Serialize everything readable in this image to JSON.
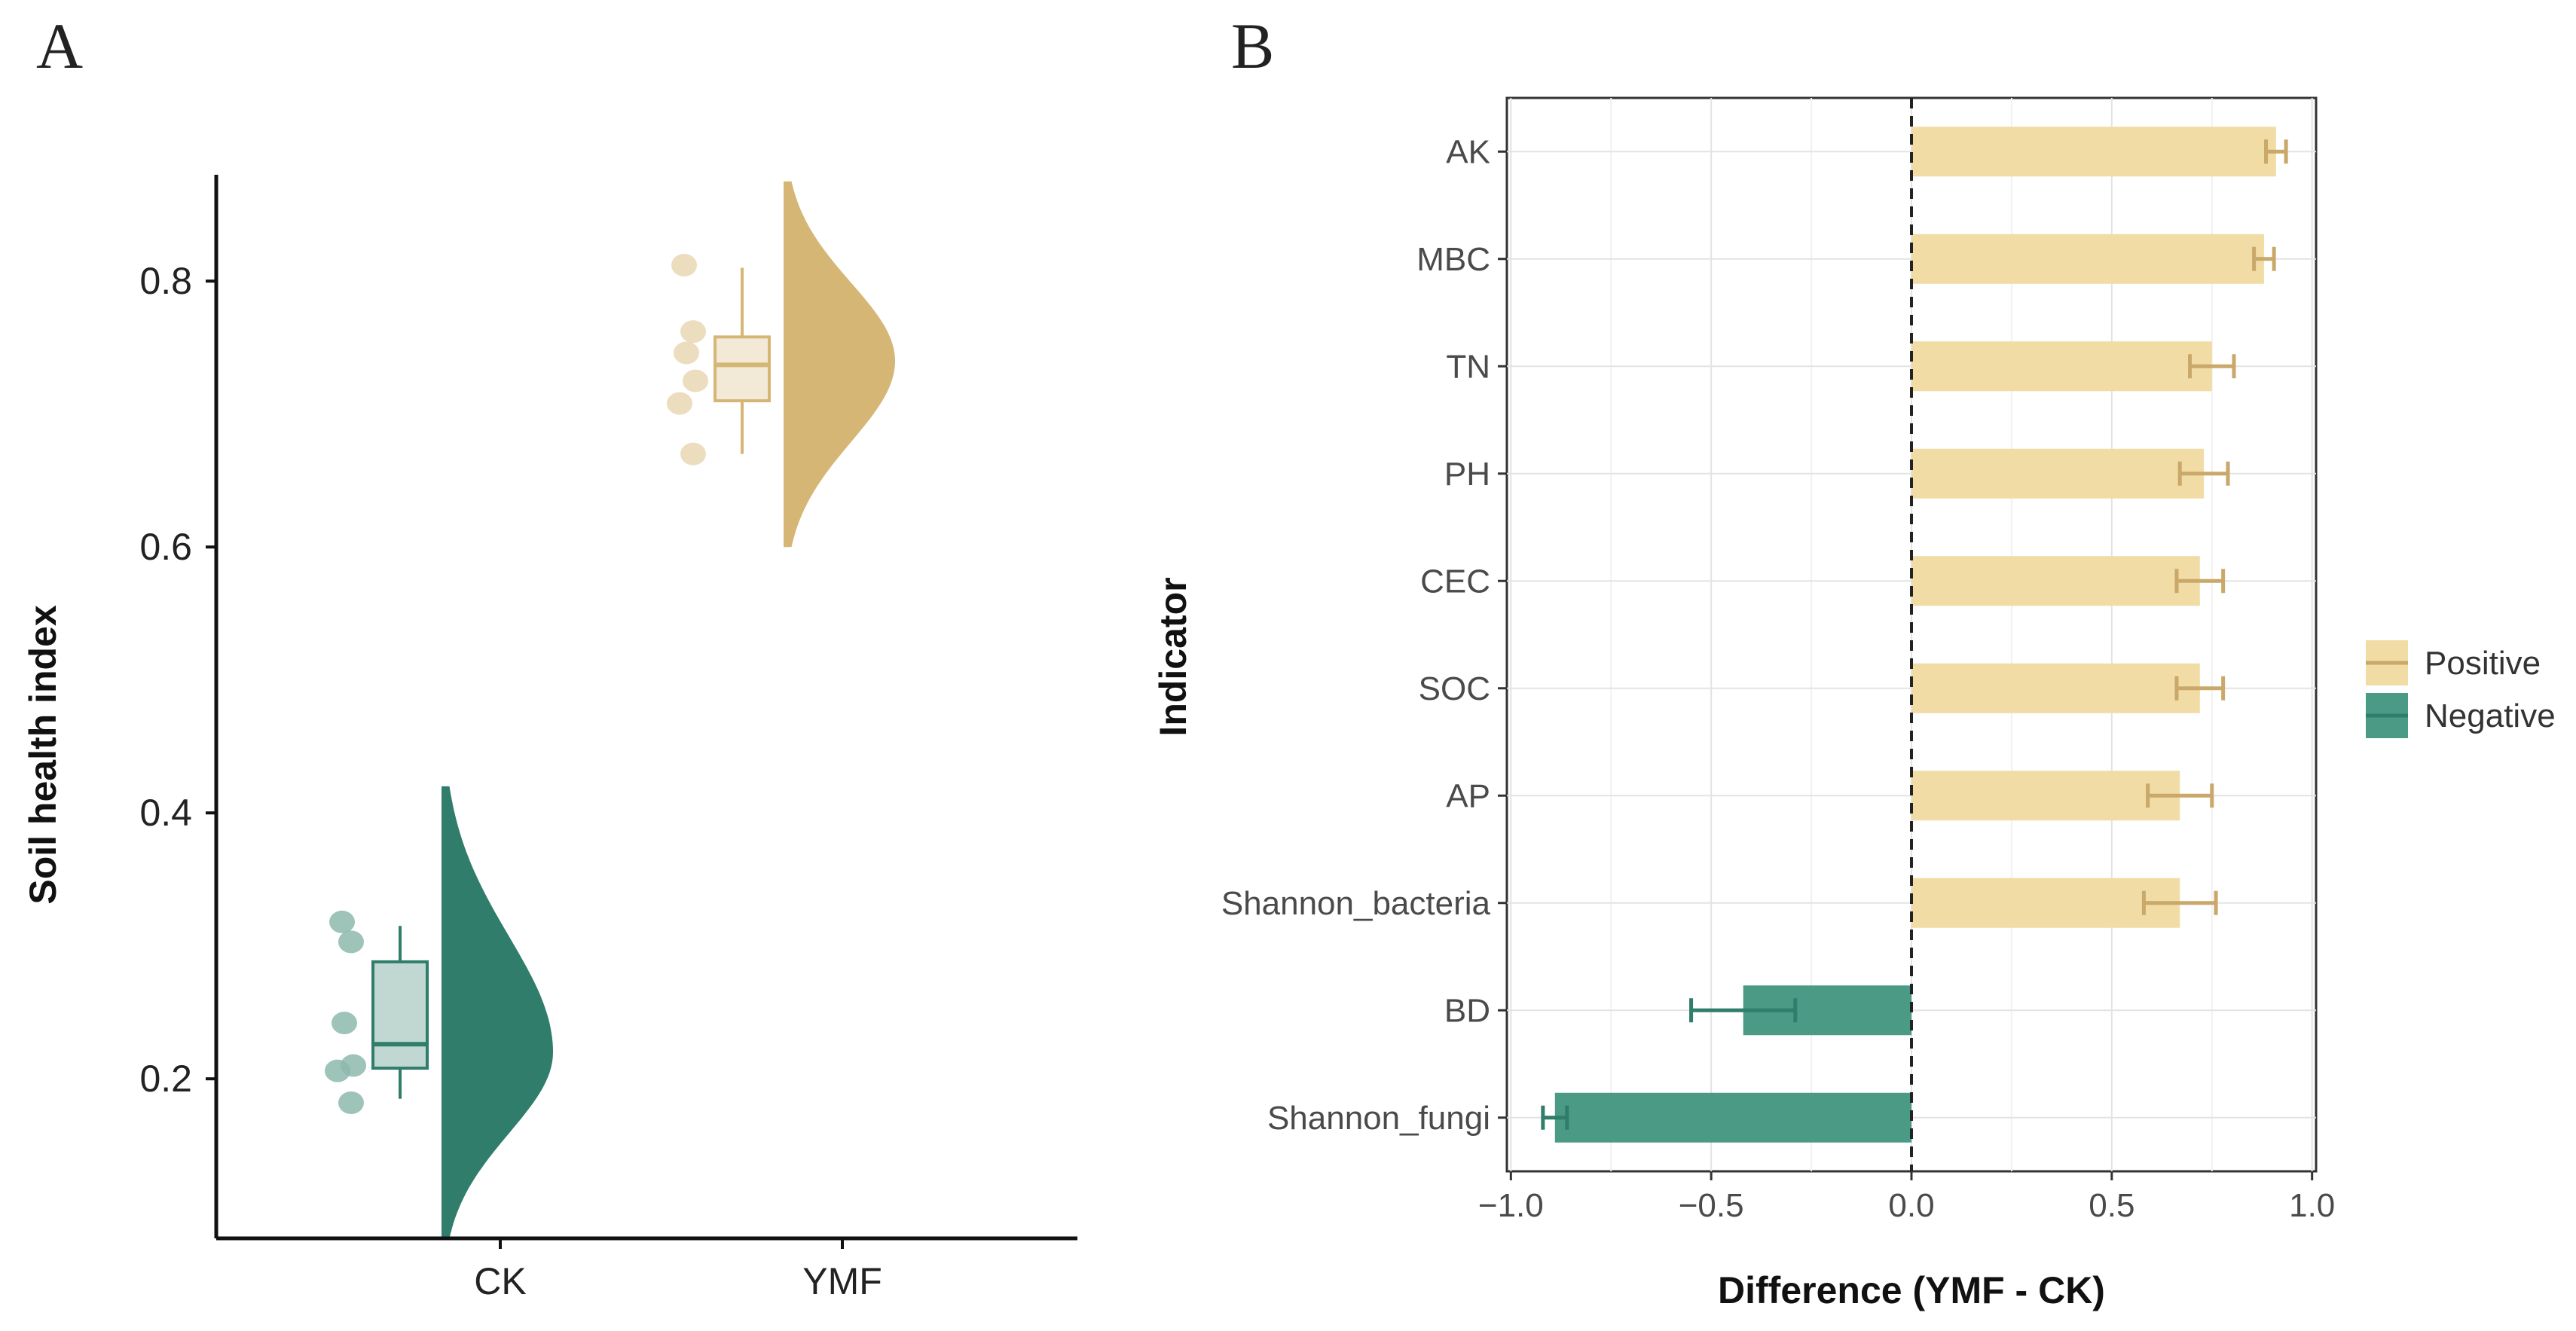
{
  "figure": {
    "panel_labels": [
      "A",
      "B"
    ]
  },
  "chart_data": [
    {
      "type": "raincloud",
      "panel": "A",
      "title": "",
      "xlabel": "",
      "ylabel": "Soil health index",
      "ylim": [
        0.08,
        0.88
      ],
      "yticks": [
        0.2,
        0.4,
        0.6,
        0.8
      ],
      "ytick_labels": [
        "0.2",
        "0.4",
        "0.6",
        "0.8"
      ],
      "categories": [
        "CK",
        "YMF"
      ],
      "groups": [
        {
          "name": "CK",
          "color": "#2f7d6a",
          "box": {
            "min": 0.185,
            "q1": 0.208,
            "median": 0.226,
            "q3": 0.288,
            "max": 0.315
          },
          "points": [
            0.318,
            0.303,
            0.242,
            0.21,
            0.206,
            0.182
          ],
          "density_range": [
            0.08,
            0.42
          ],
          "density_peak": 0.22
        },
        {
          "name": "YMF",
          "color": "#d5b675",
          "box": {
            "min": 0.67,
            "q1": 0.71,
            "median": 0.737,
            "q3": 0.758,
            "max": 0.81
          },
          "points": [
            0.812,
            0.762,
            0.746,
            0.725,
            0.708,
            0.67
          ],
          "density_range": [
            0.6,
            0.875
          ],
          "density_peak": 0.74
        }
      ]
    },
    {
      "type": "bar",
      "panel": "B",
      "orientation": "horizontal",
      "title": "",
      "xlabel": "Difference (YMF - CK)",
      "ylabel": "Indicator",
      "xlim": [
        -1.01,
        1.01
      ],
      "xticks": [
        -1.0,
        -0.5,
        0.0,
        0.5,
        1.0
      ],
      "xtick_labels": [
        "−1.0",
        "−0.5",
        "0.0",
        "0.5",
        "1.0"
      ],
      "reference_line": 0.0,
      "categories": [
        "AK",
        "MBC",
        "TN",
        "PH",
        "CEC",
        "SOC",
        "AP",
        "Shannon_bacteria",
        "BD",
        "Shannon_fungi"
      ],
      "values": [
        0.91,
        0.88,
        0.75,
        0.73,
        0.72,
        0.72,
        0.67,
        0.67,
        -0.42,
        -0.89
      ],
      "errors": [
        0.025,
        0.025,
        0.055,
        0.06,
        0.058,
        0.058,
        0.08,
        0.09,
        0.13,
        0.03
      ],
      "direction": [
        "Positive",
        "Positive",
        "Positive",
        "Positive",
        "Positive",
        "Positive",
        "Positive",
        "Positive",
        "Negative",
        "Negative"
      ],
      "legend": {
        "placement": "right",
        "entries": [
          {
            "label": "Positive",
            "color": "#f0dca4",
            "error_color": "#c9a86a"
          },
          {
            "label": "Negative",
            "color": "#4a9a86",
            "error_color": "#2f7d6a"
          }
        ]
      }
    }
  ]
}
